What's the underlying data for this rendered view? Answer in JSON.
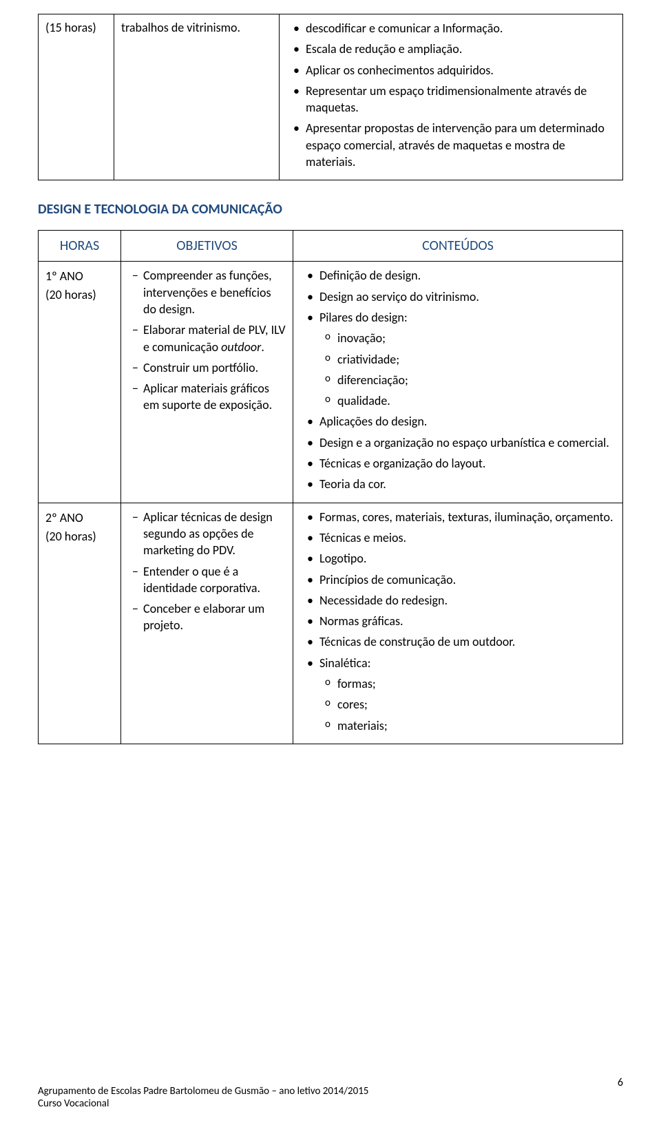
{
  "colors": {
    "heading_blue": "#1f497d",
    "border": "#000000",
    "background": "#ffffff",
    "text": "#000000"
  },
  "table1": {
    "row": {
      "col_a": "(15 horas)",
      "col_b": "trabalhos de vitrinismo.",
      "col_c_items": [
        "descodificar e comunicar a Informação.",
        "Escala de redução e ampliação.",
        "Aplicar os conhecimentos adquiridos.",
        "Representar um espaço tridimensionalmente através de maquetas.",
        "Apresentar propostas de intervenção para um determinado espaço comercial, através de maquetas e mostra de materiais."
      ]
    }
  },
  "section_title": "DESIGN E TECNOLOGIA DA COMUNICAÇÃO",
  "table2": {
    "headers": {
      "horas": "HORAS",
      "objetivos": "OBJETIVOS",
      "conteudos": "CONTEÚDOS"
    },
    "row1": {
      "year": "1º ANO",
      "hours": "(20 horas)",
      "objetivos": [
        "Compreender as funções, intervenções e benefícios do design.",
        {
          "pre": "Elaborar material de PLV, ILV e comunicação ",
          "italic": "outdoor",
          "post": "."
        },
        "Construir um portfólio.",
        "Aplicar materiais gráficos em suporte de exposição."
      ],
      "conteudos": [
        "Definição de design.",
        "Design ao serviço do vitrinismo.",
        {
          "text": "Pilares do design:",
          "sub": [
            "inovação;",
            "criatividade;",
            "diferenciação;",
            "qualidade."
          ]
        },
        "Aplicações do design.",
        "Design e a organização no espaço urbanística e comercial.",
        "Técnicas e organização do layout.",
        "Teoria da cor."
      ]
    },
    "row2": {
      "year": "2º ANO",
      "hours": "(20 horas)",
      "objetivos": [
        "Aplicar técnicas de design segundo as opções de marketing do PDV.",
        "Entender o que é a identidade corporativa.",
        "Conceber e elaborar um projeto."
      ],
      "conteudos": [
        "Formas, cores, materiais, texturas, iluminação, orçamento.",
        "Técnicas e meios.",
        "Logotipo.",
        "Princípios de comunicação.",
        "Necessidade do redesign.",
        "Normas gráficas.",
        "Técnicas de construção de um outdoor.",
        {
          "text": "Sinalética:",
          "sub": [
            "formas;",
            "cores;",
            "materiais;"
          ]
        }
      ]
    }
  },
  "footer": {
    "line1": "Agrupamento de Escolas Padre Bartolomeu de Gusmão – ano letivo 2014/2015",
    "line2": "Curso Vocacional",
    "page_number": "6"
  }
}
